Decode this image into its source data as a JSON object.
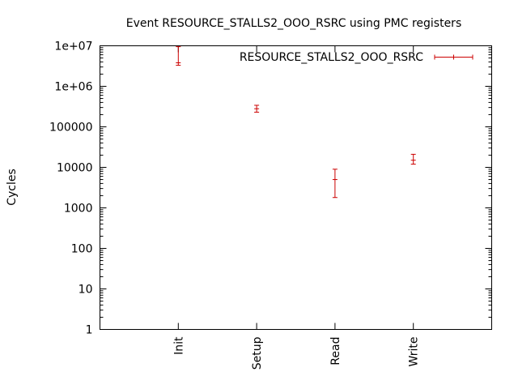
{
  "chart_data": {
    "type": "scatter",
    "title": "Event RESOURCE_STALLS2_OOO_RSRC using PMC registers",
    "xlabel": "",
    "ylabel": "Cycles",
    "yscale": "log",
    "ylim": [
      1,
      10000000
    ],
    "y_tick_labels": [
      "1",
      "10",
      "100",
      "1000",
      "10000",
      "100000",
      "1e+06",
      "1e+07"
    ],
    "categories": [
      "Init",
      "Setup",
      "Read",
      "Write"
    ],
    "legend_position": "top-right",
    "grid": false,
    "series": [
      {
        "name": "RESOURCE_STALLS2_OOO_RSRC",
        "color": "#cc0000",
        "points": [
          {
            "x": "Init",
            "y": 3800000,
            "low": 3300000,
            "high": 9500000
          },
          {
            "x": "Setup",
            "y": 280000,
            "low": 230000,
            "high": 340000
          },
          {
            "x": "Read",
            "y": 5000,
            "low": 1800,
            "high": 9000
          },
          {
            "x": "Write",
            "y": 15000,
            "low": 12000,
            "high": 21000
          }
        ]
      }
    ]
  }
}
